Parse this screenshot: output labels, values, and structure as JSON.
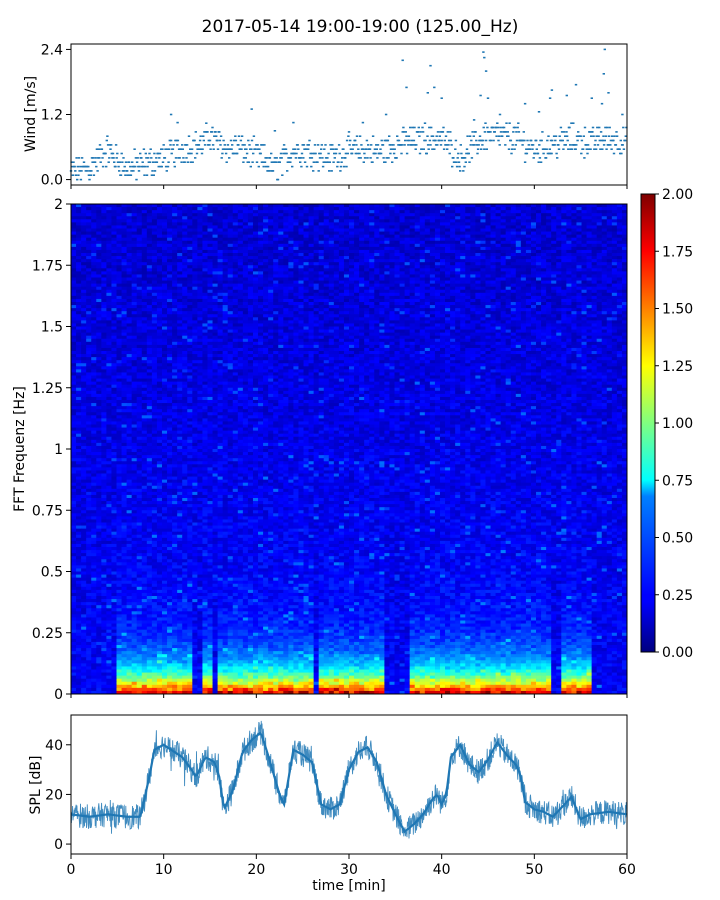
{
  "chart_data": [
    {
      "id": "wind",
      "type": "scatter",
      "title": "2017-05-14 19:00-19:00 (125.00_Hz)",
      "ylabel": "Wind [m/s]",
      "xlim": [
        0,
        60
      ],
      "ylim": [
        -0.1,
        2.5
      ],
      "yticks": [
        "0.0",
        "1.2",
        "2.4"
      ],
      "color": "#1f77b4",
      "levels": [
        0.0,
        0.08,
        0.16,
        0.24,
        0.32,
        0.4,
        0.48,
        0.56,
        0.64,
        0.72,
        0.8,
        0.88,
        0.96,
        1.04,
        1.12,
        1.2,
        1.28,
        1.36,
        1.44,
        1.52,
        1.6,
        1.68,
        1.76,
        1.84,
        1.92,
        2.0,
        2.08,
        2.16,
        2.24,
        2.32,
        2.4
      ],
      "profile_x": [
        0,
        2,
        3,
        4,
        5,
        6,
        8,
        10,
        12,
        14,
        15,
        17,
        18,
        19,
        20,
        21,
        22,
        23,
        24,
        26,
        28,
        29,
        30,
        32,
        33,
        34,
        36,
        38,
        40,
        41,
        42,
        43,
        44,
        45,
        46,
        48,
        50,
        52,
        54,
        56,
        58,
        60
      ],
      "profile_mean": [
        0.15,
        0.2,
        0.4,
        0.55,
        0.35,
        0.2,
        0.3,
        0.4,
        0.55,
        0.65,
        0.8,
        0.55,
        0.6,
        0.5,
        0.45,
        0.35,
        0.2,
        0.35,
        0.55,
        0.5,
        0.4,
        0.45,
        0.55,
        0.55,
        0.5,
        0.55,
        0.7,
        0.75,
        0.75,
        0.6,
        0.4,
        0.55,
        0.7,
        0.85,
        0.8,
        0.75,
        0.55,
        0.65,
        0.75,
        0.7,
        0.75,
        0.7
      ],
      "outliers": [
        [
          10.8,
          1.2
        ],
        [
          11.5,
          1.05
        ],
        [
          19.5,
          1.3
        ],
        [
          22,
          0.9
        ],
        [
          24,
          1.05
        ],
        [
          31.5,
          1.05
        ],
        [
          34,
          1.2
        ],
        [
          35.8,
          2.2
        ],
        [
          36.2,
          1.7
        ],
        [
          38.5,
          1.6
        ],
        [
          38.8,
          2.1
        ],
        [
          39.2,
          1.7
        ],
        [
          40,
          1.5
        ],
        [
          43.5,
          1.1
        ],
        [
          44.2,
          1.55
        ],
        [
          44.5,
          2.35
        ],
        [
          44.6,
          2.25
        ],
        [
          44.8,
          2.0
        ],
        [
          45,
          1.5
        ],
        [
          46.3,
          1.2
        ],
        [
          49,
          1.4
        ],
        [
          50.5,
          1.25
        ],
        [
          51.7,
          1.5
        ],
        [
          51.9,
          1.65
        ],
        [
          53.5,
          1.55
        ],
        [
          54.5,
          1.75
        ],
        [
          56.2,
          1.5
        ],
        [
          57.3,
          1.4
        ],
        [
          57.5,
          1.95
        ],
        [
          57.6,
          2.4
        ],
        [
          58,
          1.6
        ],
        [
          59.5,
          1.2
        ]
      ]
    },
    {
      "id": "spectrogram",
      "type": "heatmap",
      "ylabel": "FFT Frequenz [Hz]",
      "xlim": [
        0,
        60
      ],
      "ylim": [
        0,
        2
      ],
      "yticks": [
        "0",
        "0.25",
        "0.5",
        "0.75",
        "1",
        "1.25",
        "1.5",
        "1.75",
        "2"
      ],
      "colormap": "jet",
      "vmin": 0,
      "vmax": 2,
      "colorbar_ticks": [
        "0.00",
        "0.25",
        "0.50",
        "0.75",
        "1.00",
        "1.25",
        "1.50",
        "1.75",
        "2.00"
      ],
      "loud_intervals": [
        [
          5,
          8
        ],
        [
          8,
          13
        ],
        [
          14,
          15.5
        ],
        [
          16,
          20
        ],
        [
          20,
          26
        ],
        [
          26.5,
          30
        ],
        [
          30,
          34
        ],
        [
          36.5,
          40
        ],
        [
          40,
          47
        ],
        [
          47,
          52
        ],
        [
          53,
          56
        ]
      ],
      "low_freq_intensity_max": 2.0,
      "background_intensity": 0.15
    },
    {
      "id": "spl",
      "type": "line",
      "ylabel": "SPL [dB]",
      "xlabel": "time [min]",
      "xlim": [
        0,
        60
      ],
      "ylim": [
        -4,
        52
      ],
      "yticks": [
        "0",
        "20",
        "40"
      ],
      "xticks": [
        "0",
        "10",
        "20",
        "30",
        "40",
        "50",
        "60"
      ],
      "color": "#1f77b4",
      "x": [
        0,
        2,
        4,
        6,
        7.5,
        8.5,
        9,
        10,
        12,
        13,
        13.5,
        14.5,
        15.5,
        16,
        16.5,
        17.5,
        18.5,
        19.5,
        20.5,
        21.5,
        22.5,
        23,
        24,
        25,
        26,
        27,
        28,
        29,
        30,
        31,
        32,
        33,
        34,
        35,
        36,
        37,
        38,
        39,
        39.5,
        40,
        40.5,
        41,
        42,
        43,
        44,
        45,
        46,
        47,
        48,
        48.5,
        49,
        50,
        51,
        52,
        53,
        54,
        55,
        56,
        58,
        60
      ],
      "y": [
        12,
        11,
        12,
        11,
        11,
        28,
        38,
        40,
        35,
        30,
        27,
        35,
        33,
        27,
        14,
        22,
        37,
        42,
        45,
        33,
        20,
        16,
        38,
        36,
        33,
        16,
        14,
        16,
        30,
        37,
        39,
        33,
        20,
        12,
        5,
        8,
        12,
        18,
        20,
        16,
        20,
        35,
        40,
        32,
        29,
        34,
        41,
        36,
        32,
        28,
        17,
        14,
        13,
        11,
        15,
        19,
        10,
        12,
        13,
        12
      ],
      "noise_amplitude": 5
    }
  ]
}
